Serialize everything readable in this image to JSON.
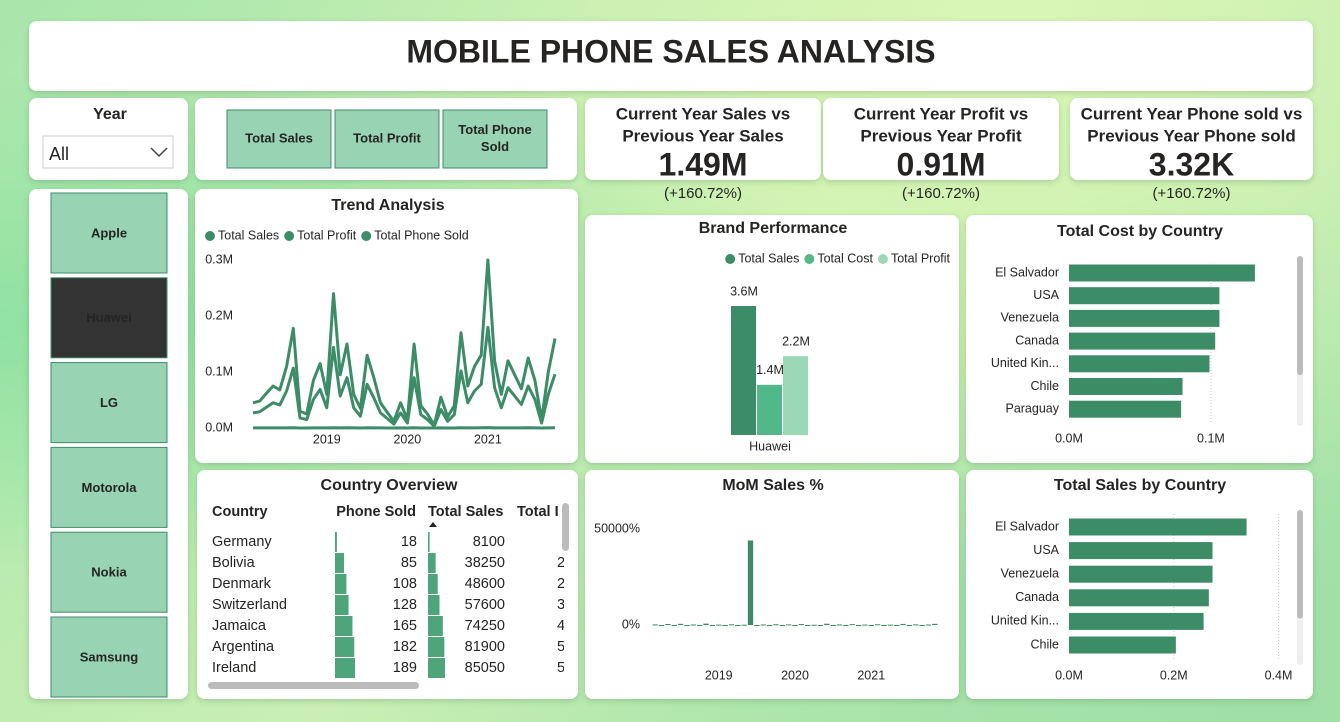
{
  "header": {
    "title": "MOBILE PHONE SALES ANALYSIS"
  },
  "year_slicer": {
    "label": "Year",
    "selected": "All"
  },
  "measure_buttons": [
    [
      "Total Sales"
    ],
    [
      "Total Profit"
    ],
    [
      "Total Phone",
      "Sold"
    ]
  ],
  "brand_slicer": {
    "options": [
      "Apple",
      "Huawei",
      "LG",
      "Motorola",
      "Nokia",
      "Samsung"
    ],
    "selected_index": 1
  },
  "kpi_cards": [
    {
      "title": [
        "Current Year Sales vs",
        "Previous Year Sales"
      ],
      "value": "1.49M",
      "change": "(+160.72%)"
    },
    {
      "title": [
        "Current Year Profit vs",
        "Previous Year Profit"
      ],
      "value": "0.91M",
      "change": "(+160.72%)"
    },
    {
      "title": [
        "Current Year Phone sold vs",
        "Previous Year Phone sold"
      ],
      "value": "3.32K",
      "change": "(+160.72%)"
    }
  ],
  "country_table": {
    "title": "Country Overview",
    "columns": [
      "Country",
      "Phone Sold",
      "Total Sales",
      "Total I"
    ],
    "rows": [
      [
        "Germany",
        18,
        8100,
        null
      ],
      [
        "Bolivia",
        85,
        38250,
        "2"
      ],
      [
        "Denmark",
        108,
        48600,
        "2"
      ],
      [
        "Switzerland",
        128,
        57600,
        "3"
      ],
      [
        "Jamaica",
        165,
        74250,
        "4"
      ],
      [
        "Argentina",
        182,
        81900,
        "5"
      ],
      [
        "Ireland",
        189,
        85050,
        "5"
      ]
    ]
  },
  "chart_data": [
    {
      "type": "line",
      "title": "Trend Analysis",
      "legend": "top-left",
      "categories": [
        null,
        null,
        null,
        null,
        null,
        null,
        null,
        null,
        null,
        null,
        null,
        "2019",
        null,
        null,
        null,
        null,
        null,
        null,
        null,
        null,
        null,
        null,
        null,
        "2020",
        null,
        null,
        null,
        null,
        null,
        null,
        null,
        null,
        null,
        null,
        null,
        "2021",
        null,
        null,
        null,
        null,
        null,
        null,
        null,
        null,
        null,
        null
      ],
      "series": [
        {
          "name": "Total Sales",
          "color": "#3d8c68",
          "values": [
            45000,
            48000,
            62000,
            75000,
            68000,
            110000,
            178000,
            30000,
            25000,
            85000,
            115000,
            60000,
            240000,
            95000,
            150000,
            60000,
            35000,
            130000,
            90000,
            45000,
            28000,
            12000,
            45000,
            15000,
            150000,
            40000,
            25000,
            5000,
            55000,
            20000,
            40000,
            170000,
            75000,
            110000,
            130000,
            300000,
            120000,
            60000,
            120000,
            95000,
            70000,
            125000,
            85000,
            15000,
            100000,
            160000
          ]
        },
        {
          "name": "Total Profit",
          "color": "#3d8c68",
          "values": [
            27000,
            29000,
            37000,
            45000,
            41000,
            66000,
            107000,
            18000,
            15000,
            51000,
            69000,
            36000,
            144000,
            57000,
            90000,
            36000,
            21000,
            78000,
            54000,
            27000,
            17000,
            7000,
            27000,
            9000,
            90000,
            24000,
            15000,
            3000,
            33000,
            12000,
            24000,
            102000,
            45000,
            66000,
            78000,
            180000,
            72000,
            36000,
            72000,
            57000,
            42000,
            75000,
            51000,
            9000,
            60000,
            96000
          ]
        },
        {
          "name": "Total Phone Sold",
          "color": "#3d8c68",
          "values": [
            100,
            107,
            138,
            167,
            151,
            244,
            396,
            67,
            56,
            189,
            256,
            133,
            533,
            211,
            333,
            133,
            78,
            289,
            200,
            100,
            62,
            27,
            100,
            33,
            333,
            89,
            56,
            11,
            122,
            44,
            89,
            378,
            167,
            244,
            289,
            667,
            267,
            133,
            267,
            211,
            156,
            278,
            189,
            33,
            222,
            356
          ]
        }
      ],
      "ylim": [
        0,
        300000
      ],
      "yticks": [
        {
          "value": 0,
          "label": "0.0M"
        },
        {
          "value": 100000,
          "label": "0.1M"
        },
        {
          "value": 200000,
          "label": "0.2M"
        },
        {
          "value": 300000,
          "label": "0.3M"
        }
      ]
    },
    {
      "type": "bar",
      "title": "Brand Performance",
      "legend": "top-right",
      "categories": [
        "Huawei"
      ],
      "series": [
        {
          "name": "Total Sales",
          "color": "#3d8c68",
          "values": [
            3600000
          ],
          "value_labels": [
            "3.6M"
          ]
        },
        {
          "name": "Total Cost",
          "color": "#52b88a",
          "values": [
            1400000
          ],
          "value_labels": [
            "1.4M"
          ]
        },
        {
          "name": "Total Profit",
          "color": "#9ad8b8",
          "values": [
            2200000
          ],
          "value_labels": [
            "2.2M"
          ]
        }
      ]
    },
    {
      "type": "hbar",
      "title": "Total Cost by Country",
      "color": "#3d8c68",
      "grid": true,
      "categories": [
        "El Salvador",
        "USA",
        "Venezuela",
        "Canada",
        "United Kin...",
        "Chile",
        "Paraguay"
      ],
      "values": [
        131000,
        106000,
        106000,
        103000,
        99000,
        80000,
        79000
      ],
      "xlim": [
        0,
        155000
      ],
      "xticks": [
        {
          "value": 0,
          "label": "0.0M"
        },
        {
          "value": 100000,
          "label": "0.1M"
        }
      ]
    },
    {
      "type": "hbar",
      "title": "Total Sales by Country",
      "color": "#3d8c68",
      "grid": true,
      "categories": [
        "El Salvador",
        "USA",
        "Venezuela",
        "Canada",
        "United Kin...",
        "Chile"
      ],
      "values": [
        339000,
        274000,
        274000,
        267000,
        257000,
        204000
      ],
      "xlim": [
        0,
        420000
      ],
      "xticks": [
        {
          "value": 0,
          "label": "0.0M"
        },
        {
          "value": 200000,
          "label": "0.2M"
        },
        {
          "value": 400000,
          "label": "0.4M"
        }
      ]
    },
    {
      "type": "bar",
      "title": "MoM Sales %",
      "color": "#3d8c68",
      "categories": [
        null,
        null,
        null,
        null,
        null,
        null,
        null,
        null,
        null,
        null,
        "2019",
        null,
        null,
        null,
        null,
        null,
        null,
        null,
        null,
        null,
        null,
        null,
        "2020",
        null,
        null,
        null,
        null,
        null,
        null,
        null,
        null,
        null,
        null,
        null,
        "2021",
        null,
        null,
        null,
        null,
        null,
        null,
        null,
        null,
        null,
        null
      ],
      "values": [
        300,
        -450,
        520,
        -380,
        600,
        -200,
        250,
        -500,
        700,
        -300,
        180,
        -420,
        350,
        -250,
        150,
        44000,
        -550,
        260,
        -480,
        400,
        -220,
        310,
        -350,
        500,
        -270,
        120,
        -400,
        650,
        -180,
        280,
        -330,
        450,
        -500,
        200,
        -260,
        380,
        -440,
        170,
        -300,
        560,
        -210,
        330,
        -460,
        240,
        600
      ],
      "ylim": [
        -15000,
        60000
      ],
      "yticks": [
        {
          "value": 50000,
          "label": "50000%"
        },
        {
          "value": 0,
          "label": "0%"
        }
      ]
    }
  ]
}
